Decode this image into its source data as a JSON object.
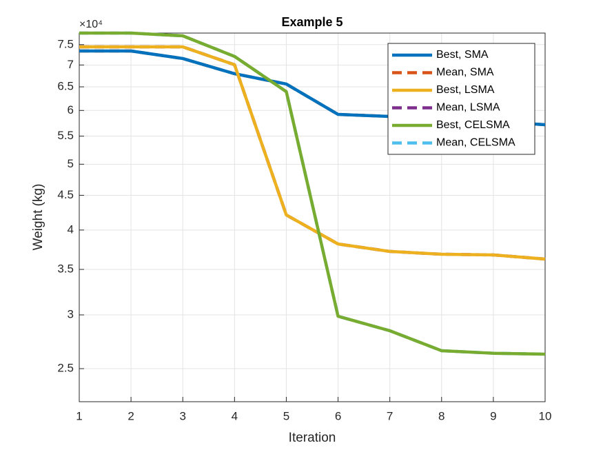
{
  "chart_data": {
    "type": "line",
    "title": "Example 5",
    "xlabel": "Iteration",
    "ylabel": "Weight (kg)",
    "y_exponent_label": "×10⁴",
    "x": [
      1,
      2,
      3,
      4,
      5,
      6,
      7,
      8,
      9,
      10
    ],
    "xlim": [
      1,
      10
    ],
    "xticks": [
      1,
      2,
      3,
      4,
      5,
      6,
      7,
      8,
      9,
      10
    ],
    "ylim": [
      22350,
      78000
    ],
    "yscale": "log",
    "yticks": [
      {
        "value": 25000,
        "label": "2.5"
      },
      {
        "value": 30000,
        "label": "3"
      },
      {
        "value": 35000,
        "label": "3.5"
      },
      {
        "value": 40000,
        "label": "4"
      },
      {
        "value": 45000,
        "label": "4.5"
      },
      {
        "value": 50000,
        "label": "5"
      },
      {
        "value": 55000,
        "label": "5.5"
      },
      {
        "value": 60000,
        "label": "6"
      },
      {
        "value": 65000,
        "label": "6.5"
      },
      {
        "value": 70000,
        "label": "7"
      },
      {
        "value": 75000,
        "label": "7.5"
      }
    ],
    "grid": true,
    "legend": "northeast",
    "series": [
      {
        "name": "Best, SMA",
        "color": "#0072BD",
        "dashed": false,
        "values": [
          73400,
          73400,
          71550,
          67960,
          65620,
          59200,
          58800,
          58400,
          57800,
          57170
        ]
      },
      {
        "name": "Mean, SMA",
        "color": "#D95319",
        "dashed": true,
        "values": [
          73400,
          73400,
          71550,
          67960,
          65620,
          59200,
          58800,
          58400,
          57800,
          57170
        ]
      },
      {
        "name": "Best, LSMA",
        "color": "#EDB120",
        "dashed": false,
        "values": [
          74440,
          74440,
          74440,
          70060,
          42100,
          38150,
          37200,
          36850,
          36760,
          36250
        ]
      },
      {
        "name": "Mean, LSMA",
        "color": "#7E2F8E",
        "dashed": true,
        "values": [
          74440,
          74440,
          74440,
          70060,
          42100,
          38150,
          37200,
          36850,
          36760,
          36250
        ]
      },
      {
        "name": "Best, CELSMA",
        "color": "#77AC30",
        "dashed": false,
        "values": [
          78000,
          78000,
          77270,
          72060,
          63950,
          29860,
          28430,
          26570,
          26340,
          26260
        ]
      },
      {
        "name": "Mean, CELSMA",
        "color": "#4DBEEE",
        "dashed": true,
        "values": [
          78000,
          78000,
          77270,
          72060,
          63950,
          29860,
          28430,
          26570,
          26340,
          26260
        ]
      }
    ]
  }
}
